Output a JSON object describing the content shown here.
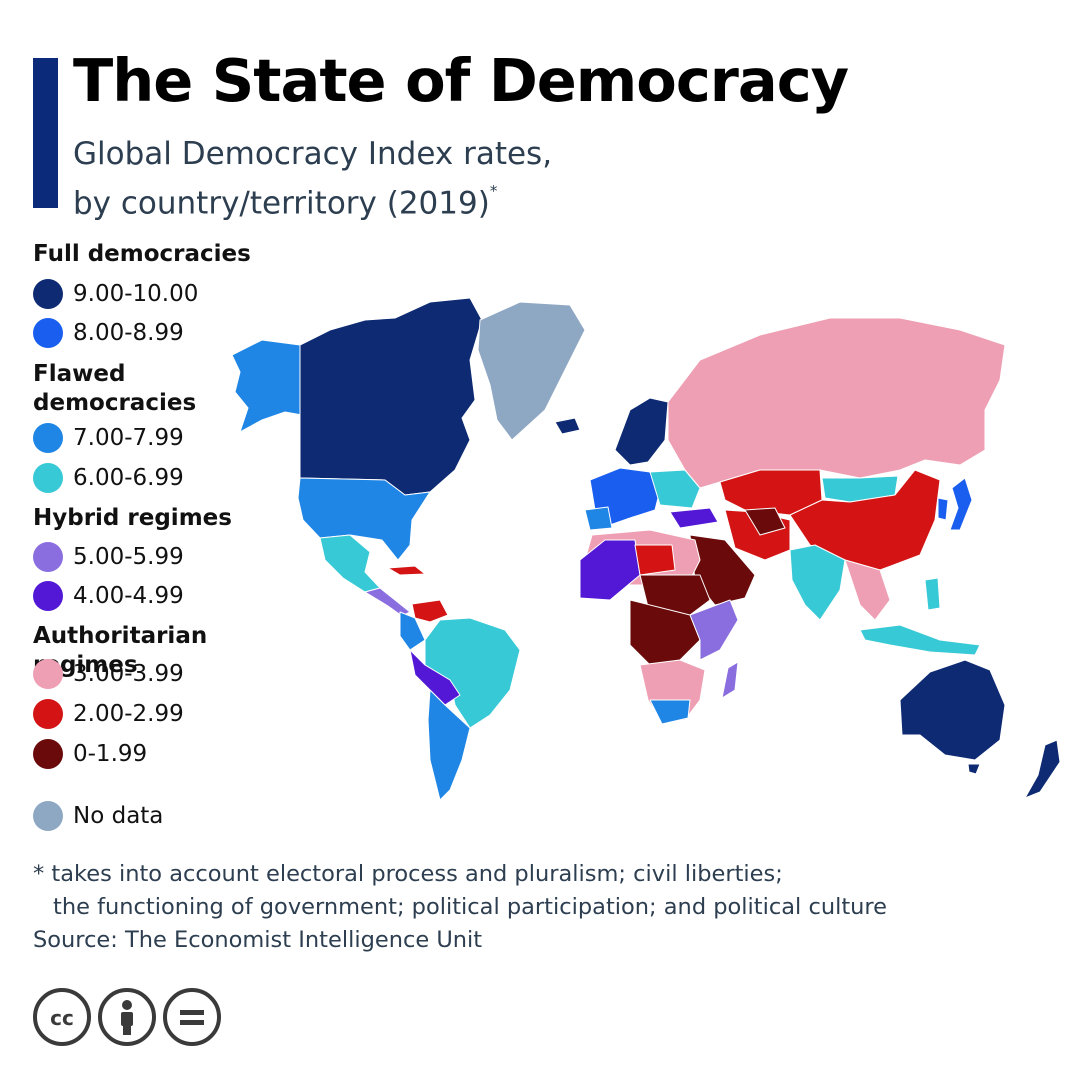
{
  "header": {
    "title": "The State of Democracy",
    "subtitle_line1": "Global Democracy Index rates,",
    "subtitle_line2": "by country/territory (2019)",
    "subtitle_mark": "*",
    "accent_color": "#0b2a7a"
  },
  "legend": {
    "groups": [
      {
        "title": "Full democracies",
        "items": [
          {
            "label": "9.00-10.00",
            "color": "#0d2a73"
          },
          {
            "label": "8.00-8.99",
            "color": "#1a5ef0"
          }
        ]
      },
      {
        "title": "Flawed democracies",
        "items": [
          {
            "label": "7.00-7.99",
            "color": "#1f86e6"
          },
          {
            "label": "6.00-6.99",
            "color": "#38c9d6"
          }
        ]
      },
      {
        "title": "Hybrid regimes",
        "items": [
          {
            "label": "5.00-5.99",
            "color": "#8a6ee0"
          },
          {
            "label": "4.00-4.99",
            "color": "#5218d6"
          }
        ]
      },
      {
        "title": "Authoritarian regimes",
        "items": [
          {
            "label": "3.00-3.99",
            "color": "#ee9fb3"
          },
          {
            "label": "2.00-2.99",
            "color": "#d41414"
          },
          {
            "label": "0-1.99",
            "color": "#6a0a0a"
          }
        ]
      }
    ],
    "no_data": {
      "label": "No data",
      "color": "#8ea8c4"
    }
  },
  "footnote": {
    "line1": "* takes into account electoral process and pluralism; civil liberties;",
    "line2": "the functioning of government; political participation; and political culture",
    "source": "Source: The Economist Intelligence Unit"
  },
  "license_icons": [
    "creative-commons-icon",
    "attribution-icon",
    "no-derivatives-icon"
  ]
}
